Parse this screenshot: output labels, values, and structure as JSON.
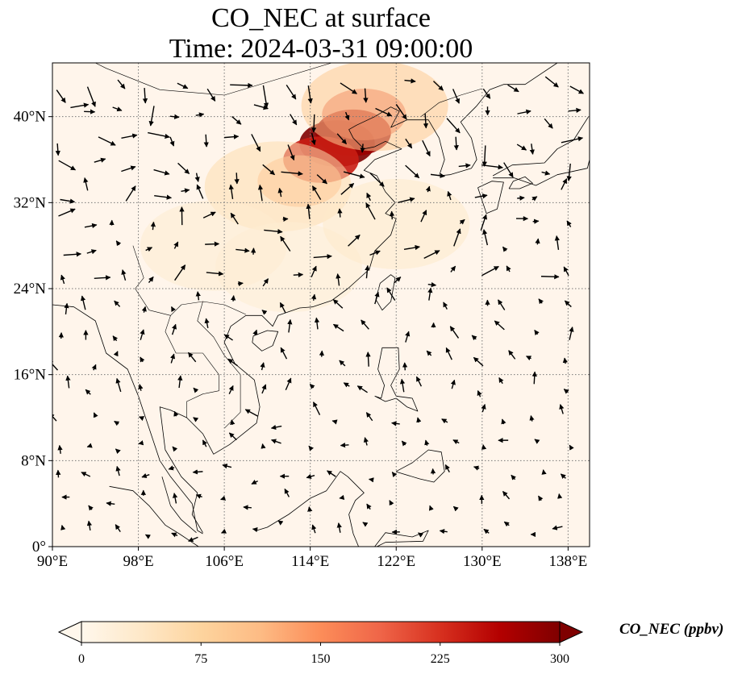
{
  "title": {
    "line1": "CO_NEC at surface",
    "line2": "Time: 2024-03-31 09:00:00"
  },
  "map": {
    "extent": {
      "lon": [
        90,
        140
      ],
      "lat": [
        0,
        45
      ]
    },
    "ocean_color": "#fff5eb",
    "coastline_color": "#000000",
    "gridline_style": "dotted",
    "lon_ticks": [
      90,
      98,
      106,
      114,
      122,
      130,
      138
    ],
    "lat_ticks": [
      0,
      8,
      16,
      24,
      32,
      40
    ],
    "lon_labels": [
      "90°E",
      "98°E",
      "106°E",
      "114°E",
      "122°E",
      "130°E",
      "138°E"
    ],
    "lat_labels": [
      "0°",
      "8°N",
      "16°N",
      "24°N",
      "32°N",
      "40°N"
    ]
  },
  "colorbar": {
    "title": "CO_NEC (ppbv)",
    "min": 0,
    "max": 300,
    "ticks": [
      0,
      75,
      150,
      225,
      300
    ],
    "tick_labels": [
      "0",
      "75",
      "150",
      "225",
      "300"
    ],
    "extend": "both",
    "colormap": "OrRd",
    "colors": [
      "#fff7ec",
      "#fee8c8",
      "#fdd49e",
      "#fdbb84",
      "#fc8d59",
      "#ef6548",
      "#d7301f",
      "#b30000",
      "#7f0000"
    ]
  },
  "plumes": [
    {
      "lon": 116.5,
      "lat": 37.5,
      "value": 300
    },
    {
      "lon": 118,
      "lat": 38.5,
      "value": 280
    },
    {
      "lon": 115,
      "lat": 36,
      "value": 240
    },
    {
      "lon": 119,
      "lat": 40.2,
      "value": 200
    },
    {
      "lon": 113,
      "lat": 34,
      "value": 120
    },
    {
      "lon": 120,
      "lat": 41,
      "value": 90
    },
    {
      "lon": 111,
      "lat": 33.5,
      "value": 60
    },
    {
      "lon": 105,
      "lat": 28,
      "value": 30
    },
    {
      "lon": 112,
      "lat": 26,
      "value": 25
    },
    {
      "lon": 122,
      "lat": 30,
      "value": 35
    }
  ]
}
